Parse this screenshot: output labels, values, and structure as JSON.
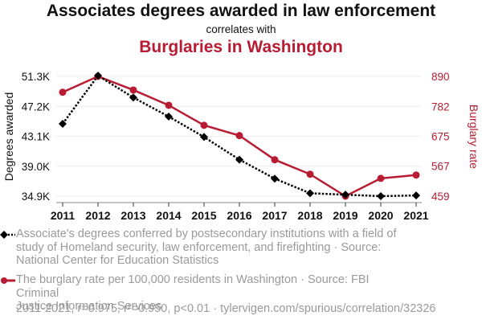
{
  "header": {
    "title": "Associates degrees awarded in law enforcement",
    "subtitle": "correlates with",
    "title2": "Burglaries in Washington"
  },
  "chart_data": {
    "type": "line",
    "title": "Associates degrees awarded in law enforcement correlates with Burglaries in Washington",
    "xlabel": "",
    "x": [
      "2011",
      "2012",
      "2013",
      "2014",
      "2015",
      "2016",
      "2017",
      "2018",
      "2019",
      "2020",
      "2021"
    ],
    "series": [
      {
        "name": "Associate's degrees conferred by postsecondary institutions with a field of study of Homeland security, law enforcement, and firefighting",
        "axis": "left",
        "color": "#000000",
        "style": "dotted",
        "marker": "diamond",
        "values": [
          44800,
          51400,
          48400,
          45800,
          43000,
          39900,
          37300,
          35300,
          35100,
          34900,
          35000
        ]
      },
      {
        "name": "The burglary rate per 100,000 residents in Washington",
        "axis": "right",
        "color": "#b71c32",
        "style": "solid",
        "marker": "circle",
        "values": [
          833,
          890,
          841,
          786,
          714,
          677,
          590,
          538,
          459,
          523,
          535
        ]
      }
    ],
    "y_left": {
      "label": "Degrees awarded",
      "ticks": [
        "51.3K",
        "47.2K",
        "43.1K",
        "39.0K",
        "34.9K"
      ],
      "tick_values": [
        51300,
        47200,
        43100,
        39000,
        34900
      ],
      "range": [
        34900,
        51300
      ]
    },
    "y_right": {
      "label": "Burglary rate",
      "ticks": [
        "890",
        "782",
        "675",
        "567",
        "459"
      ],
      "tick_values": [
        890,
        782,
        675,
        567,
        459
      ],
      "range": [
        459,
        890
      ]
    },
    "grid": true,
    "legend_position": "bottom"
  },
  "legend": {
    "series1_text_lines": [
      "Associate's degrees conferred by postsecondary institutions with a field of",
      "study of Homeland security, law enforcement, and firefighting · Source:",
      "National Center for Education Statistics"
    ],
    "series2_text_lines": [
      "The burglary rate per 100,000 residents in Washington · Source: FBI Criminal",
      "Justice Information Services"
    ]
  },
  "footer": {
    "text": "2011-2021, r=0.975, r²=0.950, p<0.01 · tylervigen.com/spurious/correlation/32326"
  },
  "colors": {
    "accent": "#b71c32",
    "primary": "#000000",
    "muted": "#9a9a9a",
    "grid": "#eeeeee"
  }
}
